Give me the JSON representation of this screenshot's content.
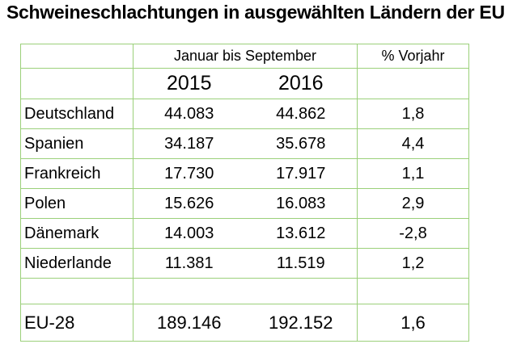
{
  "title": "Schweineschlachtungen in ausgewählten Ländern der EU",
  "header": {
    "period": "Januar bis September",
    "change": "% Vorjahr",
    "year1": "2015",
    "year2": "2016"
  },
  "rows": [
    {
      "country": "Deutschland",
      "y2015": "44.083",
      "y2016": "44.862",
      "change": "1,8"
    },
    {
      "country": "Spanien",
      "y2015": "34.187",
      "y2016": "35.678",
      "change": "4,4"
    },
    {
      "country": "Frankreich",
      "y2015": "17.730",
      "y2016": "17.917",
      "change": "1,1"
    },
    {
      "country": "Polen",
      "y2015": "15.626",
      "y2016": "16.083",
      "change": "2,9"
    },
    {
      "country": "Dänemark",
      "y2015": "14.003",
      "y2016": "13.612",
      "change": "-2,8"
    },
    {
      "country": "Niederlande",
      "y2015": "11.381",
      "y2016": "11.519",
      "change": "1,2"
    }
  ],
  "total": {
    "country": "EU-28",
    "y2015": "189.146",
    "y2016": "192.152",
    "change": "1,6"
  },
  "colors": {
    "grid": "#9bd07a",
    "text": "#000000"
  }
}
